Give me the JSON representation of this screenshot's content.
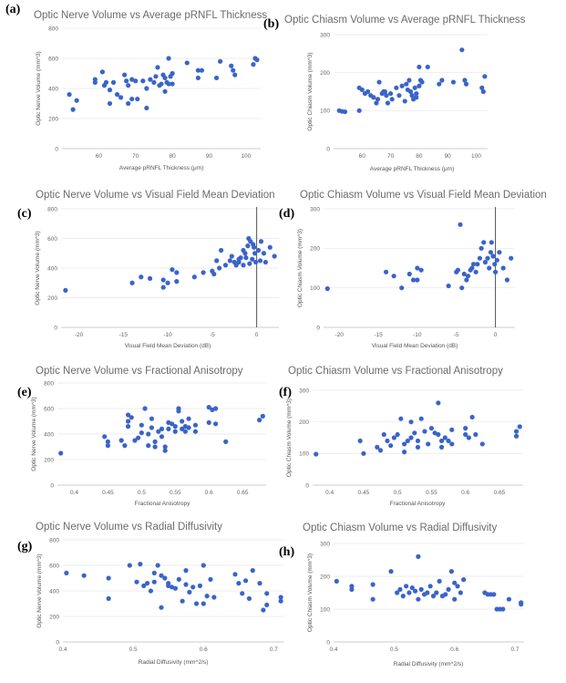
{
  "chart_data": [
    {
      "label": "(a)",
      "type": "scatter",
      "title": "Optic Nerve Volume vs Average pRNFL Thickness",
      "xlabel": "Average pRNFL Thickness (μm)",
      "ylabel": "Optic Nerve Volume (mm^3)",
      "xlim": [
        50,
        104
      ],
      "ylim": [
        0,
        800
      ],
      "xticks": [
        60,
        70,
        80,
        90,
        100
      ],
      "yticks": [
        0,
        200,
        400,
        600,
        800
      ],
      "xtick_labels": [
        "60",
        "70",
        "80",
        "90",
        "100"
      ],
      "ytick_labels": [
        "0",
        "200",
        "400",
        "600",
        "800"
      ],
      "x": [
        52,
        53,
        54,
        59,
        59,
        61,
        61.5,
        62,
        63,
        63,
        64,
        65,
        66,
        67,
        67.5,
        68,
        68,
        69,
        69,
        70,
        70.5,
        72,
        73,
        73,
        74,
        75,
        75.5,
        76,
        76.5,
        77,
        77.5,
        78,
        78,
        78.5,
        79,
        79,
        79.5,
        80,
        80,
        84,
        87,
        87,
        88,
        92,
        93,
        96,
        96.5,
        97,
        102,
        102.5,
        103
      ],
      "y": [
        360,
        260,
        320,
        440,
        460,
        510,
        420,
        440,
        390,
        300,
        440,
        360,
        340,
        490,
        450,
        300,
        420,
        460,
        330,
        450,
        330,
        450,
        400,
        270,
        460,
        440,
        480,
        540,
        420,
        430,
        490,
        470,
        380,
        440,
        430,
        600,
        480,
        430,
        500,
        570,
        470,
        520,
        520,
        470,
        580,
        550,
        520,
        490,
        560,
        600,
        590
      ]
    },
    {
      "label": "(b)",
      "type": "scatter",
      "title": "Optic Chiasm Volume vs Average pRNFL Thickness",
      "xlabel": "Average pRNFL Thickness (μm)",
      "ylabel": "Optic Chiasm Volume (mm^3)",
      "xlim": [
        50,
        104
      ],
      "ylim": [
        0,
        300
      ],
      "xticks": [
        60,
        70,
        80,
        90,
        100
      ],
      "yticks": [
        0,
        100,
        200,
        300
      ],
      "xtick_labels": [
        "60",
        "70",
        "80",
        "90",
        "100"
      ],
      "ytick_labels": [
        "0",
        "100",
        "200",
        "300"
      ],
      "x": [
        59,
        60,
        61,
        62,
        63,
        64,
        65,
        65.5,
        66,
        67,
        67.5,
        68,
        68.5,
        69,
        70,
        70.5,
        72,
        73,
        74,
        75,
        75.5,
        76,
        76.5,
        77,
        77.5,
        78,
        78.5,
        79,
        79,
        80,
        80,
        80.5,
        81,
        83,
        87,
        88,
        92,
        95,
        96,
        96.5,
        102,
        102.5,
        103,
        52,
        53,
        54,
        59
      ],
      "y": [
        160,
        155,
        145,
        150,
        140,
        135,
        120,
        130,
        175,
        145,
        150,
        150,
        140,
        120,
        145,
        130,
        160,
        140,
        165,
        125,
        170,
        155,
        180,
        150,
        140,
        130,
        160,
        135,
        145,
        165,
        215,
        180,
        175,
        215,
        170,
        180,
        175,
        260,
        180,
        170,
        160,
        150,
        190,
        100,
        98,
        97,
        100
      ]
    },
    {
      "label": "(c)",
      "type": "scatter",
      "title": "Optic Nerve Volume vs Visual Field Mean Deviation",
      "xlabel": "Visual Field Mean Deviation (dB)",
      "ylabel": "Optic Nerve Volume (mm^3)",
      "xlim": [
        -22,
        2.5
      ],
      "ylim": [
        0,
        800
      ],
      "xticks": [
        -20,
        -15,
        -10,
        -5,
        0
      ],
      "yticks": [
        0,
        200,
        400,
        600,
        800
      ],
      "xtick_labels": [
        "-20",
        "-15",
        "-10",
        "-5",
        "0"
      ],
      "ytick_labels": [
        "0",
        "200",
        "400",
        "600",
        "800"
      ],
      "vline": 0,
      "x": [
        -21.5,
        -14,
        -13,
        -12,
        -10.5,
        -10.5,
        -10,
        -9.5,
        -9,
        -9,
        -5,
        -4.8,
        -4.5,
        -4.2,
        -4,
        -3.5,
        -3,
        -2.8,
        -2.5,
        -2.3,
        -2,
        -1.8,
        -1.5,
        -1.3,
        -1,
        -0.9,
        -0.8,
        -0.7,
        -0.5,
        -0.4,
        -0.3,
        -0.2,
        -0.1,
        0.2,
        0.4,
        0.5,
        0.8,
        1,
        1.5,
        2,
        -6,
        -7,
        -2,
        -1.5,
        -1.2
      ],
      "y": [
        250,
        300,
        340,
        330,
        270,
        320,
        300,
        390,
        370,
        310,
        380,
        360,
        450,
        400,
        520,
        420,
        450,
        480,
        440,
        420,
        460,
        470,
        520,
        500,
        550,
        600,
        430,
        580,
        460,
        560,
        540,
        500,
        440,
        520,
        450,
        580,
        500,
        440,
        540,
        480,
        370,
        340,
        440,
        420,
        470
      ]
    },
    {
      "label": "(d)",
      "type": "scatter",
      "title": "Optic Chiasm Volume vs Visual Field Mean Deviation",
      "xlabel": "Visual Field Mean Deviation (dB)",
      "ylabel": "Optic Chiasm Volume (mm^3)",
      "xlim": [
        -22,
        2.5
      ],
      "ylim": [
        0,
        300
      ],
      "xticks": [
        -20,
        -15,
        -10,
        -5,
        0
      ],
      "yticks": [
        0,
        100,
        200,
        300
      ],
      "xtick_labels": [
        "-20",
        "-15",
        "-10",
        "-5",
        "0"
      ],
      "ytick_labels": [
        "0",
        "100",
        "200",
        "300"
      ],
      "vline": 0,
      "x": [
        -21.5,
        -14,
        -13,
        -12,
        -11,
        -10.5,
        -10,
        -10,
        -9.5,
        -6,
        -5,
        -4.8,
        -4.5,
        -4.3,
        -4,
        -3.7,
        -3.5,
        -3.2,
        -3,
        -2.8,
        -2.5,
        -2.3,
        -2,
        -1.8,
        -1.5,
        -1.3,
        -1,
        -0.8,
        -0.6,
        -0.5,
        -0.3,
        -0.1,
        0,
        0.2,
        0.5,
        1,
        1.5,
        2
      ],
      "y": [
        98,
        140,
        130,
        100,
        135,
        120,
        150,
        120,
        145,
        105,
        140,
        145,
        260,
        100,
        135,
        120,
        130,
        145,
        150,
        160,
        140,
        160,
        175,
        200,
        215,
        165,
        175,
        150,
        190,
        215,
        180,
        160,
        140,
        170,
        190,
        150,
        120,
        175
      ]
    },
    {
      "label": "(e)",
      "type": "scatter",
      "title": "Optic Nerve Volume vs Fractional Anisotropy",
      "xlabel": "Fractional Anisotropy",
      "ylabel": "Optic Nerve Volume (mm^3)",
      "xlim": [
        0.375,
        0.685
      ],
      "ylim": [
        0,
        800
      ],
      "xticks": [
        0.4,
        0.45,
        0.5,
        0.55,
        0.6,
        0.65
      ],
      "yticks": [
        0,
        200,
        400,
        600,
        800
      ],
      "xtick_labels": [
        "0.4",
        "0.45",
        "0.5",
        "0.55",
        "0.6",
        "0.65"
      ],
      "ytick_labels": [
        "0",
        "200",
        "400",
        "600",
        "800"
      ],
      "x": [
        0.38,
        0.445,
        0.45,
        0.45,
        0.47,
        0.475,
        0.48,
        0.48,
        0.48,
        0.485,
        0.49,
        0.495,
        0.5,
        0.5,
        0.505,
        0.51,
        0.51,
        0.515,
        0.515,
        0.52,
        0.52,
        0.525,
        0.53,
        0.53,
        0.535,
        0.535,
        0.54,
        0.54,
        0.545,
        0.55,
        0.55,
        0.555,
        0.555,
        0.56,
        0.56,
        0.565,
        0.565,
        0.57,
        0.57,
        0.58,
        0.58,
        0.6,
        0.6,
        0.605,
        0.61,
        0.61,
        0.625,
        0.675,
        0.68
      ],
      "y": [
        250,
        380,
        310,
        340,
        350,
        310,
        550,
        500,
        460,
        530,
        350,
        370,
        470,
        410,
        600,
        400,
        310,
        450,
        520,
        300,
        340,
        420,
        380,
        440,
        270,
        300,
        490,
        440,
        480,
        460,
        420,
        600,
        580,
        500,
        440,
        460,
        420,
        520,
        450,
        420,
        470,
        610,
        490,
        590,
        600,
        480,
        340,
        510,
        540
      ]
    },
    {
      "label": "(f)",
      "type": "scatter",
      "title": "Optic Chiasm Volume vs Fractional Anisotropy",
      "xlabel": "Fractional Anisotropy",
      "ylabel": "Optic Chiasm Volume (mm^3)",
      "xlim": [
        0.375,
        0.685
      ],
      "ylim": [
        0,
        300
      ],
      "xticks": [
        0.4,
        0.45,
        0.5,
        0.55,
        0.6,
        0.65
      ],
      "yticks": [
        0,
        100,
        200,
        300
      ],
      "xtick_labels": [
        "0.4",
        "0.45",
        "0.5",
        "0.55",
        "0.6",
        "0.65"
      ],
      "ytick_labels": [
        "0",
        "100",
        "200",
        "300"
      ],
      "x": [
        0.38,
        0.445,
        0.45,
        0.47,
        0.475,
        0.48,
        0.485,
        0.49,
        0.495,
        0.5,
        0.505,
        0.51,
        0.51,
        0.515,
        0.52,
        0.52,
        0.525,
        0.53,
        0.53,
        0.535,
        0.54,
        0.545,
        0.55,
        0.555,
        0.56,
        0.56,
        0.565,
        0.565,
        0.57,
        0.575,
        0.58,
        0.58,
        0.6,
        0.6,
        0.605,
        0.61,
        0.615,
        0.625,
        0.675,
        0.68,
        0.675
      ],
      "y": [
        98,
        140,
        100,
        120,
        110,
        160,
        140,
        125,
        150,
        160,
        210,
        105,
        130,
        140,
        150,
        200,
        165,
        120,
        140,
        210,
        170,
        130,
        180,
        165,
        160,
        260,
        140,
        120,
        150,
        140,
        130,
        175,
        160,
        180,
        150,
        215,
        160,
        130,
        170,
        185,
        155
      ]
    },
    {
      "label": "(g)",
      "type": "scatter",
      "title": "Optic Nerve Volume vs Radial Diffusivity",
      "xlabel": "Radial Diffusivity (mm^2/s)",
      "ylabel": "Optic Nerve Volume (mm^3)",
      "xlim": [
        0.4,
        0.715
      ],
      "ylim": [
        0,
        800
      ],
      "xticks": [
        0.4,
        0.5,
        0.6,
        0.7
      ],
      "yticks": [
        0,
        200,
        400,
        600,
        800
      ],
      "xtick_labels": [
        "0.4",
        "0.5",
        "0.6",
        "0.7"
      ],
      "ytick_labels": [
        "0",
        "200",
        "400",
        "600",
        "800"
      ],
      "x": [
        0.405,
        0.43,
        0.465,
        0.465,
        0.495,
        0.505,
        0.51,
        0.515,
        0.52,
        0.525,
        0.53,
        0.53,
        0.535,
        0.54,
        0.54,
        0.545,
        0.55,
        0.55,
        0.555,
        0.56,
        0.565,
        0.57,
        0.575,
        0.575,
        0.58,
        0.585,
        0.59,
        0.595,
        0.6,
        0.6,
        0.605,
        0.61,
        0.615,
        0.645,
        0.65,
        0.655,
        0.66,
        0.665,
        0.67,
        0.68,
        0.685,
        0.69,
        0.71,
        0.71,
        0.69
      ],
      "y": [
        540,
        520,
        500,
        340,
        600,
        470,
        610,
        440,
        460,
        400,
        540,
        470,
        600,
        520,
        270,
        500,
        440,
        460,
        430,
        420,
        490,
        320,
        560,
        450,
        390,
        430,
        300,
        440,
        300,
        600,
        360,
        490,
        350,
        530,
        460,
        380,
        480,
        340,
        560,
        460,
        250,
        380,
        350,
        320,
        290
      ]
    },
    {
      "label": "(h)",
      "type": "scatter",
      "title": "Optic Chiasm Volume vs Radial Diffusivity",
      "xlabel": "Radial Diffusivity (mm^2/s)",
      "ylabel": "Optic Chiasm Volume (mm^3)",
      "xlim": [
        0.4,
        0.715
      ],
      "ylim": [
        0,
        300
      ],
      "xticks": [
        0.4,
        0.5,
        0.6,
        0.7
      ],
      "yticks": [
        0,
        100,
        200,
        300
      ],
      "xtick_labels": [
        "0.4",
        "0.5",
        "0.6",
        "0.7"
      ],
      "ytick_labels": [
        "0",
        "100",
        "200",
        "300"
      ],
      "x": [
        0.405,
        0.43,
        0.43,
        0.465,
        0.465,
        0.495,
        0.505,
        0.51,
        0.515,
        0.52,
        0.525,
        0.53,
        0.535,
        0.54,
        0.54,
        0.545,
        0.55,
        0.555,
        0.56,
        0.565,
        0.57,
        0.575,
        0.58,
        0.585,
        0.59,
        0.595,
        0.6,
        0.6,
        0.605,
        0.61,
        0.615,
        0.65,
        0.655,
        0.66,
        0.665,
        0.67,
        0.675,
        0.68,
        0.69,
        0.71,
        0.71
      ],
      "y": [
        185,
        170,
        160,
        175,
        130,
        215,
        150,
        160,
        140,
        170,
        150,
        165,
        155,
        260,
        130,
        160,
        145,
        150,
        170,
        140,
        150,
        185,
        140,
        145,
        160,
        215,
        130,
        180,
        170,
        150,
        190,
        150,
        145,
        145,
        145,
        100,
        100,
        100,
        130,
        120,
        115
      ]
    }
  ]
}
